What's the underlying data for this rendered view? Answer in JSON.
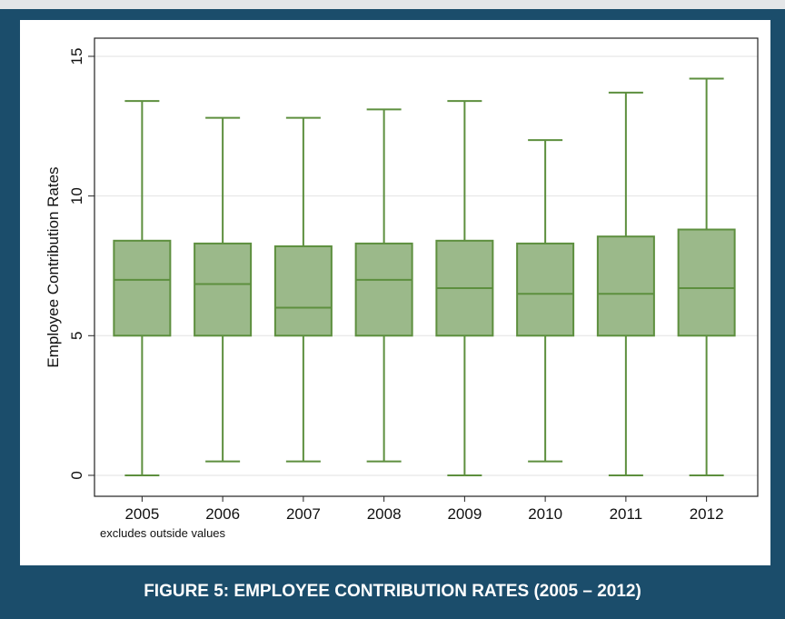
{
  "chart_data": {
    "type": "box",
    "y_label": "Employee Contribution Rates",
    "note": "excludes outside values",
    "categories": [
      "2005",
      "2006",
      "2007",
      "2008",
      "2009",
      "2010",
      "2011",
      "2012"
    ],
    "min": [
      0,
      0.5,
      0.5,
      0.5,
      0,
      0.5,
      0,
      0
    ],
    "q1": [
      5,
      5,
      5,
      5,
      5,
      5,
      5,
      5
    ],
    "median": [
      7,
      6.85,
      6,
      7,
      6.7,
      6.5,
      6.5,
      6.7
    ],
    "q3": [
      8.4,
      8.3,
      8.2,
      8.3,
      8.4,
      8.3,
      8.55,
      8.8
    ],
    "max": [
      13.4,
      12.8,
      12.8,
      13.1,
      13.4,
      12,
      13.7,
      14.2
    ],
    "color": "#9bb98a",
    "edge_color": "#5d8f3e",
    "ylim": [
      -0.75,
      15.65
    ],
    "yticks": [
      0,
      5,
      10,
      15
    ],
    "grid": true
  },
  "caption": "FIGURE 5: EMPLOYEE CONTRIBUTION RATES (2005 – 2012)"
}
